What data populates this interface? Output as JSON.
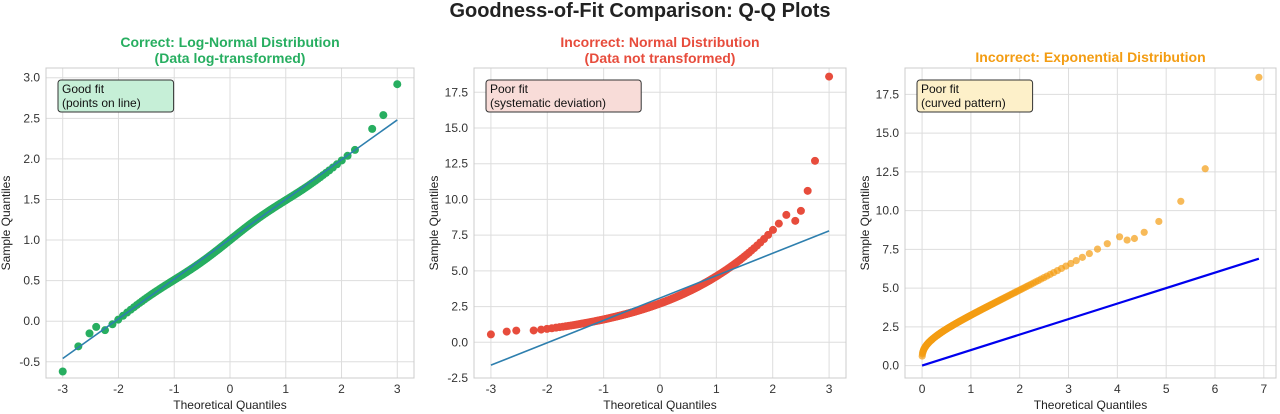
{
  "suptitle": "Goodness-of-Fit Comparison: Q-Q Plots",
  "chart_data": [
    {
      "type": "scatter",
      "title_lines": [
        "Correct: Log-Normal Distribution",
        "(Data log-transformed)"
      ],
      "title_color": "#27ae60",
      "xlabel": "Theoretical Quantiles",
      "ylabel": "Sample Quantiles",
      "xlim": [
        -3.3,
        3.3
      ],
      "ylim": [
        -0.7,
        3.12
      ],
      "xticks": [
        -3,
        -2,
        -1,
        0,
        1,
        2,
        3
      ],
      "xtick_labels": [
        "-3",
        "-2",
        "-1",
        "0",
        "1",
        "2",
        "3"
      ],
      "yticks": [
        -0.5,
        0.0,
        0.5,
        1.0,
        1.5,
        2.0,
        2.5,
        3.0
      ],
      "ytick_labels": [
        "-0.5",
        "0.0",
        "0.5",
        "1.0",
        "1.5",
        "2.0",
        "2.5",
        "3.0"
      ],
      "grid": true,
      "point_color": "#27ae60",
      "line_color": "#2e7fae",
      "line": {
        "x": [
          -3,
          3
        ],
        "y": [
          -0.46,
          2.48
        ]
      },
      "curve": "lognormal",
      "tail_points": [
        [
          -3.0,
          -0.62
        ],
        [
          -2.72,
          -0.31
        ],
        [
          -2.52,
          -0.15
        ],
        [
          -2.4,
          -0.07
        ],
        [
          2.55,
          2.37
        ],
        [
          2.75,
          2.54
        ],
        [
          3.0,
          2.92
        ]
      ],
      "annotation": [
        "Good fit",
        "(points on line)"
      ],
      "annotation_bg": "#c6efd7"
    },
    {
      "type": "scatter",
      "title_lines": [
        "Incorrect: Normal Distribution",
        "(Data not transformed)"
      ],
      "title_color": "#e74c3c",
      "xlabel": "Theoretical Quantiles",
      "ylabel": "Sample Quantiles",
      "xlim": [
        -3.3,
        3.3
      ],
      "ylim": [
        -2.5,
        19.2
      ],
      "xticks": [
        -3,
        -2,
        -1,
        0,
        1,
        2,
        3
      ],
      "xtick_labels": [
        "-3",
        "-2",
        "-1",
        "0",
        "1",
        "2",
        "3"
      ],
      "yticks": [
        -2.5,
        0.0,
        2.5,
        5.0,
        7.5,
        10.0,
        12.5,
        15.0,
        17.5
      ],
      "ytick_labels": [
        "-2.5",
        "0.0",
        "2.5",
        "5.0",
        "7.5",
        "10.0",
        "12.5",
        "15.0",
        "17.5"
      ],
      "grid": true,
      "point_color": "#e74c3c",
      "line_color": "#2e7fae",
      "line": {
        "x": [
          -3,
          3
        ],
        "y": [
          -1.6,
          7.8
        ]
      },
      "curve": "normal",
      "tail_points": [
        [
          -3.0,
          0.55
        ],
        [
          -2.72,
          0.75
        ],
        [
          -2.55,
          0.82
        ],
        [
          2.4,
          8.5
        ],
        [
          2.5,
          9.2
        ],
        [
          2.62,
          10.6
        ],
        [
          2.75,
          12.7
        ],
        [
          3.0,
          18.6
        ]
      ],
      "annotation": [
        "Poor fit",
        "(systematic deviation)"
      ],
      "annotation_bg": "#f8dcd8"
    },
    {
      "type": "scatter",
      "title_lines": [
        "Incorrect: Exponential Distribution"
      ],
      "title_color": "#f39c12",
      "xlabel": "Theoretical Quantiles",
      "ylabel": "Sample Quantiles",
      "xlim": [
        -0.35,
        7.25
      ],
      "ylim": [
        -0.8,
        19.2
      ],
      "xticks": [
        0,
        1,
        2,
        3,
        4,
        5,
        6,
        7
      ],
      "xtick_labels": [
        "0",
        "1",
        "2",
        "3",
        "4",
        "5",
        "6",
        "7"
      ],
      "yticks": [
        0.0,
        2.5,
        5.0,
        7.5,
        10.0,
        12.5,
        15.0,
        17.5
      ],
      "ytick_labels": [
        "0.0",
        "2.5",
        "5.0",
        "7.5",
        "10.0",
        "12.5",
        "15.0",
        "17.5"
      ],
      "grid": true,
      "point_color": "#f39c12",
      "line_color": "#0000ee",
      "line": {
        "x": [
          0,
          6.9
        ],
        "y": [
          0.0,
          6.9
        ]
      },
      "curve": "exponential",
      "tail_points": [
        [
          4.2,
          8.1
        ],
        [
          4.35,
          8.2
        ],
        [
          4.55,
          8.6
        ],
        [
          4.85,
          9.3
        ],
        [
          5.3,
          10.6
        ],
        [
          5.8,
          12.7
        ],
        [
          6.9,
          18.6
        ]
      ],
      "annotation": [
        "Poor fit",
        "(curved pattern)"
      ],
      "annotation_bg": "#fdf0c9"
    }
  ]
}
